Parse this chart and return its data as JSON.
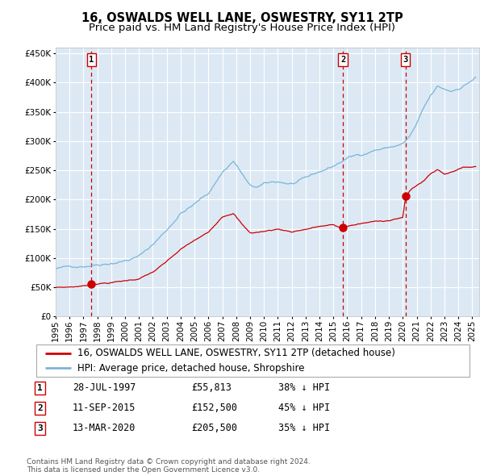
{
  "title": "16, OSWALDS WELL LANE, OSWESTRY, SY11 2TP",
  "subtitle": "Price paid vs. HM Land Registry's House Price Index (HPI)",
  "ylim": [
    0,
    460000
  ],
  "xlim_start": 1995.0,
  "xlim_end": 2025.5,
  "background_color": "#dce9f5",
  "grid_color": "#ffffff",
  "hpi_line_color": "#7ab4d8",
  "price_line_color": "#cc0000",
  "dashed_line_color": "#cc0000",
  "marker_color": "#cc0000",
  "purchase_dates": [
    1997.57,
    2015.69,
    2020.19
  ],
  "purchase_prices": [
    55813,
    152500,
    205500
  ],
  "legend_entries": [
    "16, OSWALDS WELL LANE, OSWESTRY, SY11 2TP (detached house)",
    "HPI: Average price, detached house, Shropshire"
  ],
  "table_entries": [
    {
      "num": 1,
      "date": "28-JUL-1997",
      "price": "£55,813",
      "pct": "38% ↓ HPI"
    },
    {
      "num": 2,
      "date": "11-SEP-2015",
      "price": "£152,500",
      "pct": "45% ↓ HPI"
    },
    {
      "num": 3,
      "date": "13-MAR-2020",
      "price": "£205,500",
      "pct": "35% ↓ HPI"
    }
  ],
  "footer": "Contains HM Land Registry data © Crown copyright and database right 2024.\nThis data is licensed under the Open Government Licence v3.0.",
  "title_fontsize": 10.5,
  "subtitle_fontsize": 9.5,
  "tick_fontsize": 7.5,
  "legend_fontsize": 8.5,
  "table_fontsize": 8.5,
  "footer_fontsize": 6.5
}
